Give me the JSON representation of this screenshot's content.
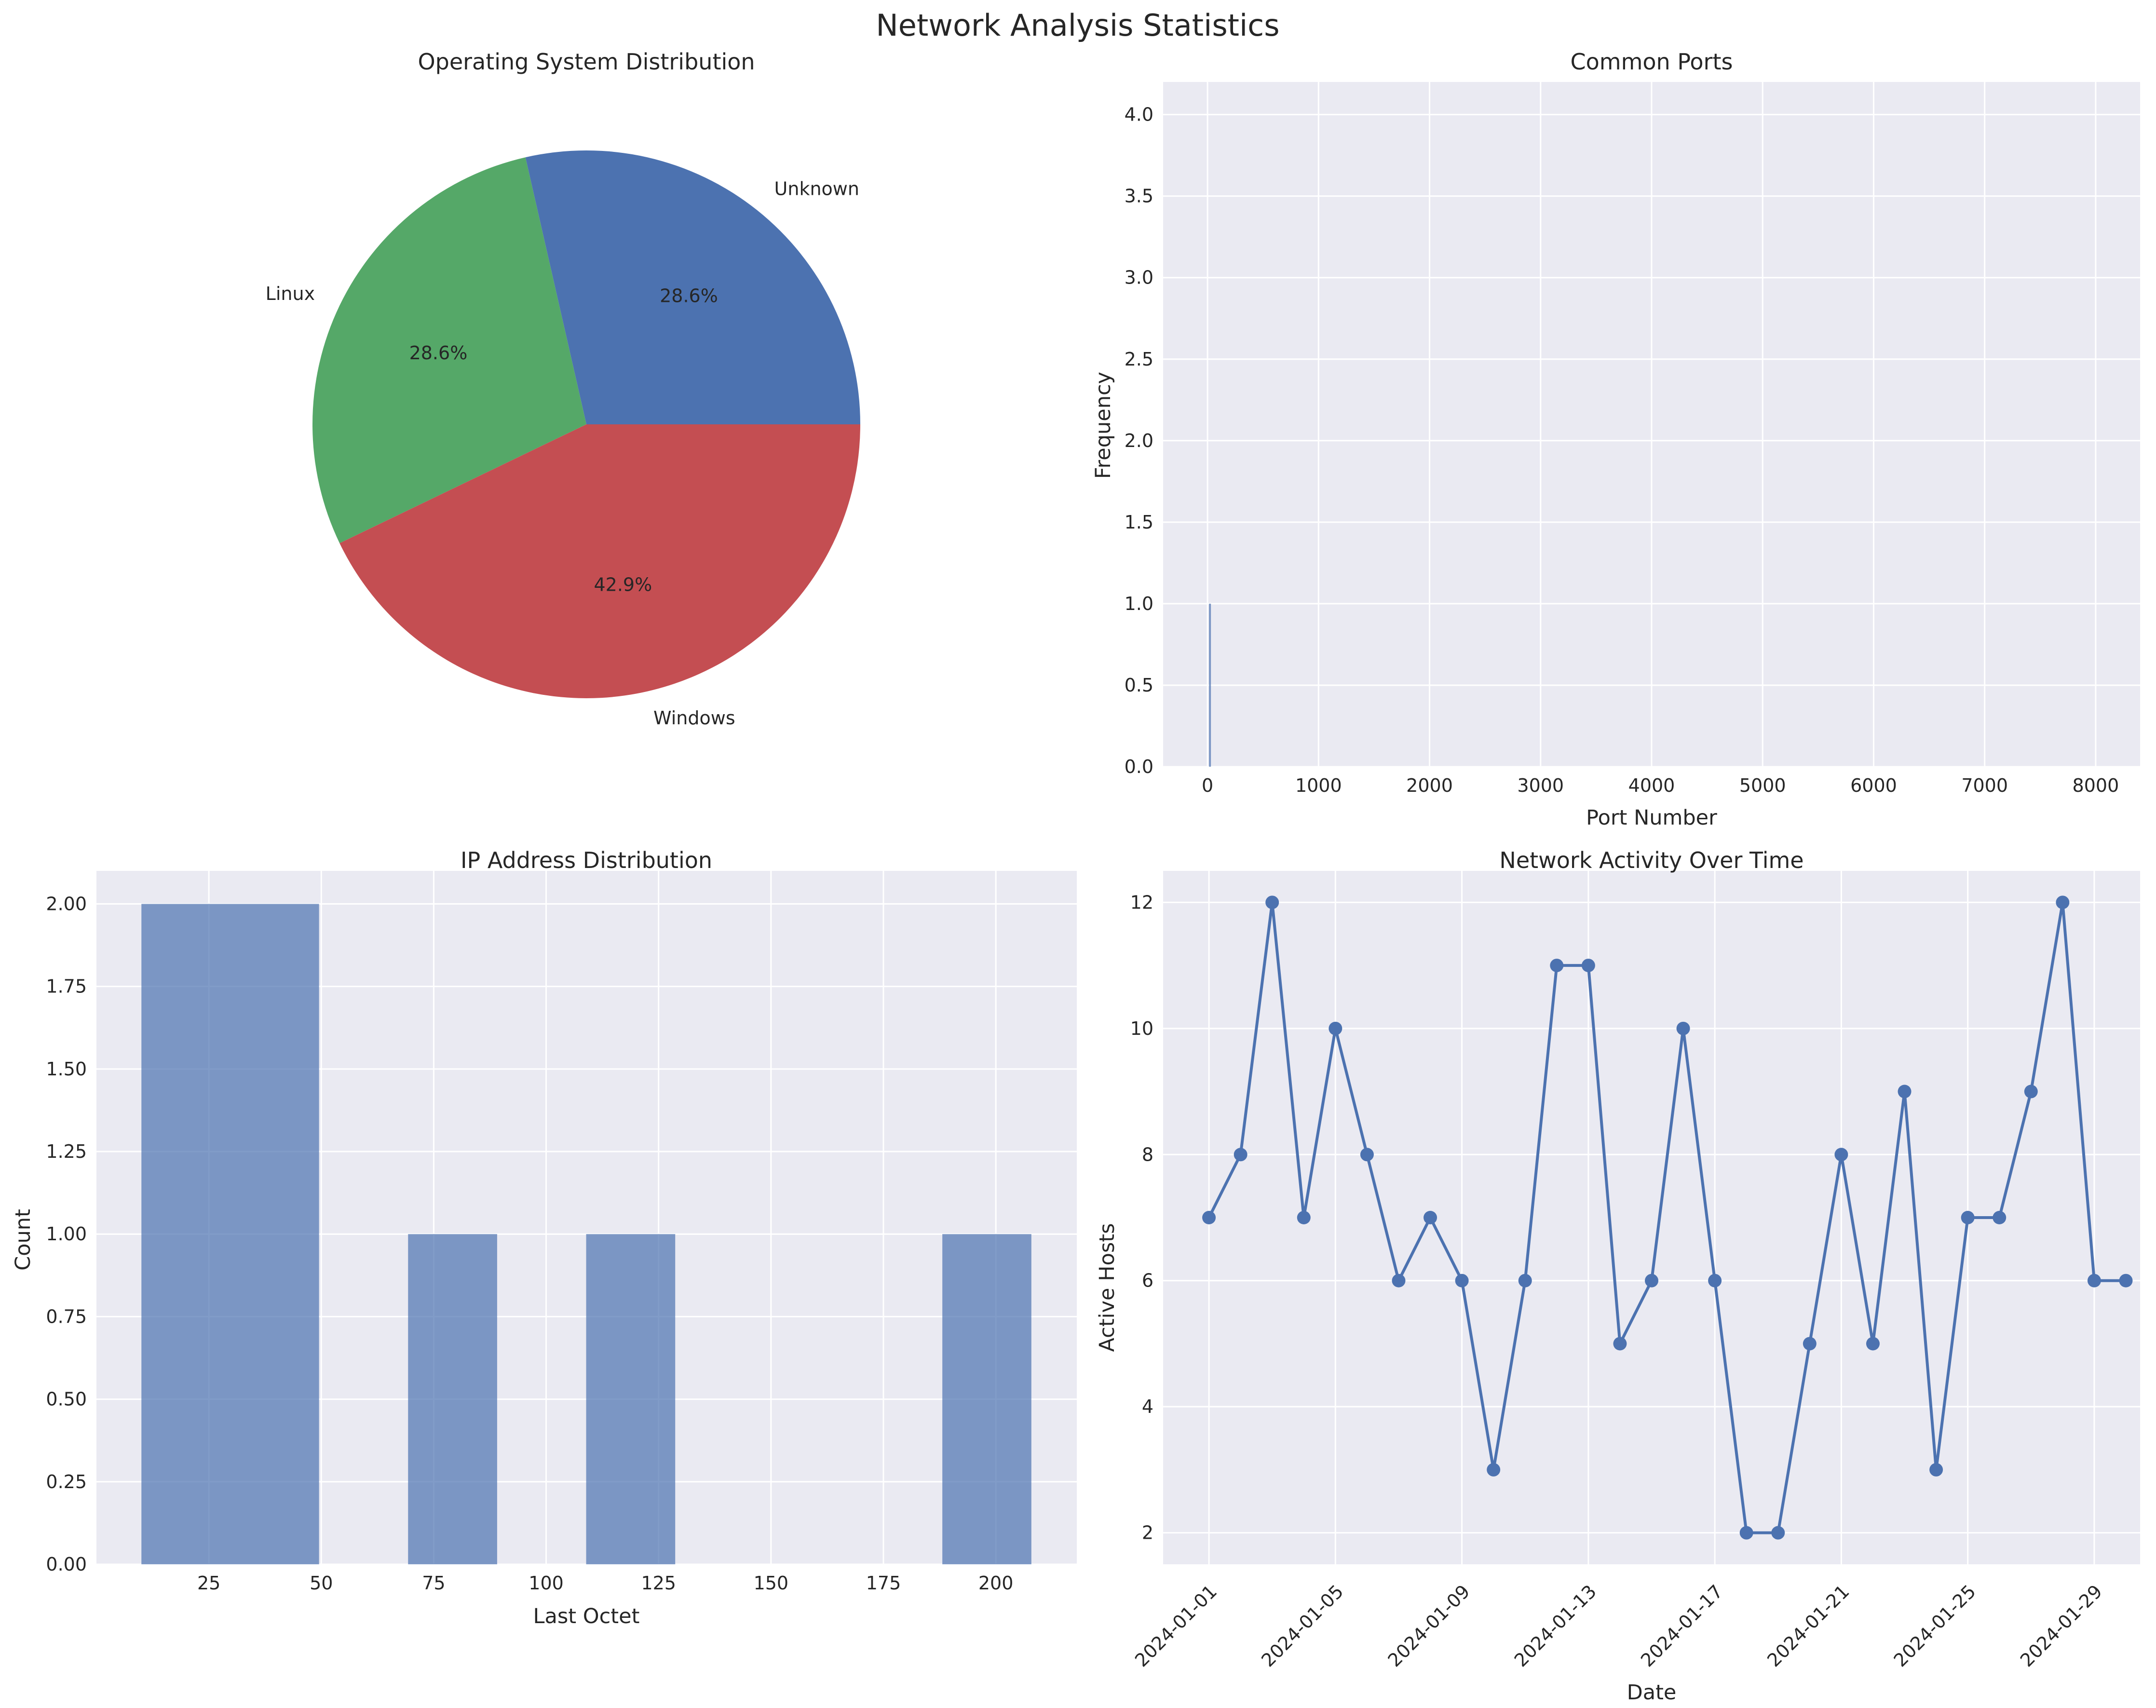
{
  "figure": {
    "title": "Network Analysis Statistics",
    "colors": {
      "background": "#eaeaf2",
      "grid": "#ffffff",
      "blue": "#4c72b0",
      "green": "#55a868",
      "red": "#c44e52",
      "text": "#262626"
    }
  },
  "chart_data": [
    {
      "type": "pie",
      "title": "Operating System Distribution",
      "labels": [
        "Unknown",
        "Linux",
        "Windows"
      ],
      "values": [
        28.6,
        28.6,
        42.9
      ],
      "autopct": [
        "28.6%",
        "28.6%",
        "42.9%"
      ],
      "colors": [
        "#4c72b0",
        "#55a868",
        "#c44e52"
      ]
    },
    {
      "type": "bar",
      "title": "Common Ports",
      "xlabel": "Port Number",
      "ylabel": "Frequency",
      "xlim": [
        -400,
        8400
      ],
      "ylim": [
        0,
        4.2
      ],
      "xticks": [
        0,
        1000,
        2000,
        3000,
        4000,
        5000,
        6000,
        7000,
        8000
      ],
      "yticks": [
        0.0,
        0.5,
        1.0,
        1.5,
        2.0,
        2.5,
        3.0,
        3.5,
        4.0
      ],
      "bars": [
        {
          "x": 22,
          "height": 1
        }
      ],
      "grid": true
    },
    {
      "type": "bar",
      "title": "IP Address Distribution",
      "xlabel": "Last Octet",
      "ylabel": "Count",
      "xlim": [
        0,
        218
      ],
      "ylim": [
        0,
        2.1
      ],
      "xticks": [
        25,
        50,
        75,
        100,
        125,
        150,
        175,
        200
      ],
      "yticks": [
        0.0,
        0.25,
        0.5,
        0.75,
        1.0,
        1.25,
        1.5,
        1.75,
        2.0
      ],
      "bins": [
        {
          "start": 10,
          "end": 49.5,
          "count": 2
        },
        {
          "start": 69.3,
          "end": 89.1,
          "count": 1
        },
        {
          "start": 108.9,
          "end": 128.7,
          "count": 1
        },
        {
          "start": 188.1,
          "end": 207.9,
          "count": 1
        }
      ],
      "grid": true
    },
    {
      "type": "line",
      "title": "Network Activity Over Time",
      "xlabel": "Date",
      "ylabel": "Active Hosts",
      "x": [
        "2024-01-01",
        "2024-01-02",
        "2024-01-03",
        "2024-01-04",
        "2024-01-05",
        "2024-01-06",
        "2024-01-07",
        "2024-01-08",
        "2024-01-09",
        "2024-01-10",
        "2024-01-11",
        "2024-01-12",
        "2024-01-13",
        "2024-01-14",
        "2024-01-15",
        "2024-01-16",
        "2024-01-17",
        "2024-01-18",
        "2024-01-19",
        "2024-01-20",
        "2024-01-21",
        "2024-01-22",
        "2024-01-23",
        "2024-01-24",
        "2024-01-25",
        "2024-01-26",
        "2024-01-27",
        "2024-01-28",
        "2024-01-29",
        "2024-01-30"
      ],
      "y": [
        7,
        8,
        12,
        7,
        10,
        8,
        6,
        7,
        6,
        3,
        6,
        11,
        11,
        5,
        6,
        10,
        6,
        2,
        2,
        5,
        8,
        5,
        9,
        3,
        7,
        7,
        9,
        12,
        6,
        6
      ],
      "xticks": [
        "2024-01-01",
        "2024-01-05",
        "2024-01-09",
        "2024-01-13",
        "2024-01-17",
        "2024-01-21",
        "2024-01-25",
        "2024-01-29"
      ],
      "yticks": [
        2,
        4,
        6,
        8,
        10,
        12
      ],
      "xlim": [
        "2023-12-30T13:12",
        "2024-01-30T10:48"
      ],
      "ylim": [
        1.5,
        12.5
      ],
      "grid": true,
      "marker": "circle"
    }
  ]
}
